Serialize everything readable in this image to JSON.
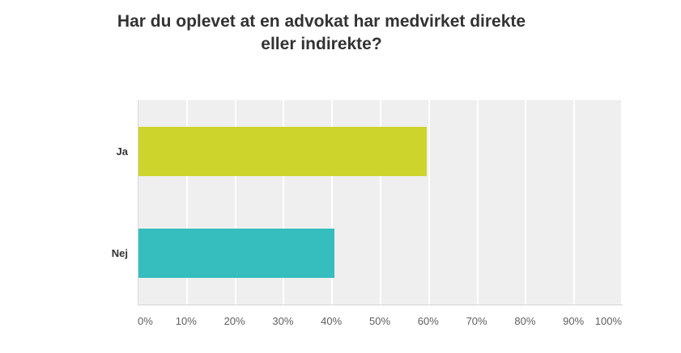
{
  "chart": {
    "title": "Har du oplevet at en advokat har medvirket direkte eller indirekte?"
  },
  "chart_data": {
    "type": "bar",
    "orientation": "horizontal",
    "title": "Har du oplevet at en advokat har medvirket direkte eller indirekte?",
    "categories": [
      "Ja",
      "Nej"
    ],
    "values": [
      59.6,
      40.4
    ],
    "value_unit": "%",
    "xlabel": "",
    "ylabel": "",
    "xlim": [
      0,
      100
    ],
    "x_tick_labels": [
      "0%",
      "10%",
      "20%",
      "30%",
      "40%",
      "50%",
      "60%",
      "70%",
      "80%",
      "90%",
      "100%"
    ],
    "grid": true,
    "legend": false,
    "bar_colors": [
      "#cdd42b",
      "#36bdbe"
    ],
    "plot_background": "#efefef",
    "gridline_color": "#ffffff",
    "title_color": "#333333",
    "tick_label_color": "#5f5f5f"
  }
}
